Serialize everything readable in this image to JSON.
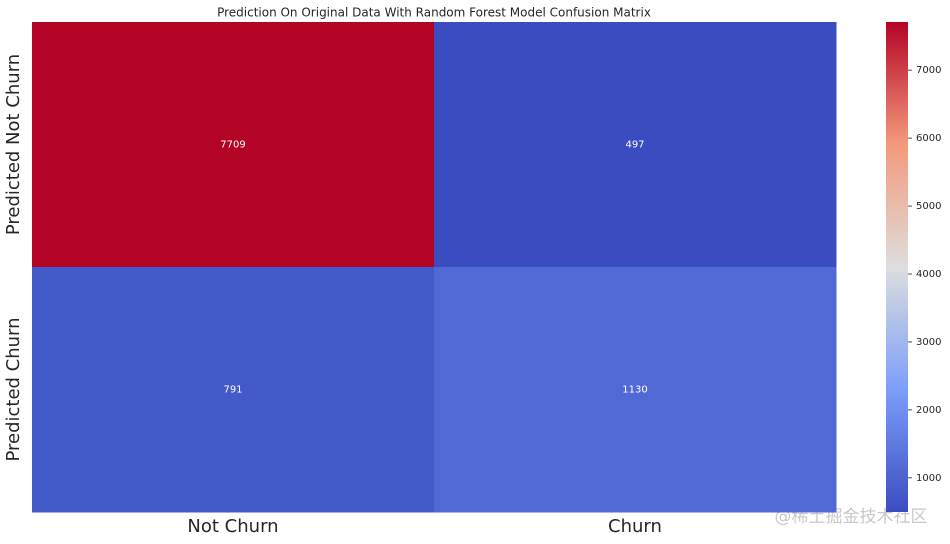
{
  "chart_data": {
    "type": "heatmap",
    "title": "Prediction On Original Data With Random Forest Model Confusion Matrix",
    "x_categories": [
      "Not Churn",
      "Churn"
    ],
    "y_categories": [
      "Predicted Not Churn",
      "Predicted Churn"
    ],
    "values": [
      [
        7709,
        497
      ],
      [
        791,
        1130
      ]
    ],
    "colormap": "coolwarm",
    "clim": [
      497,
      7709
    ],
    "cticks": [
      1000,
      2000,
      3000,
      4000,
      5000,
      6000,
      7000
    ],
    "watermark": "@稀土掘金技术社区"
  }
}
